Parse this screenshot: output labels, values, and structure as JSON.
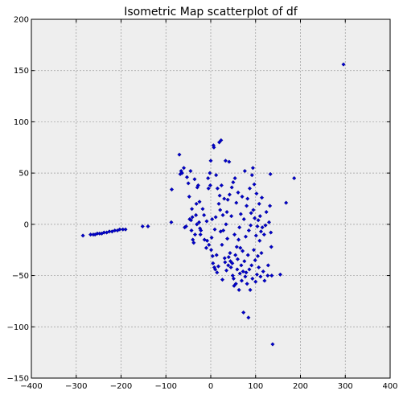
{
  "chart_data": {
    "type": "scatter",
    "title": "Isometric Map scatterplot of df",
    "xlabel": "",
    "ylabel": "",
    "xlim": [
      -400,
      400
    ],
    "ylim": [
      -150,
      200
    ],
    "xticks": [
      "−400",
      "−300",
      "−200",
      "−100",
      "0",
      "100",
      "200",
      "300",
      "400"
    ],
    "yticks": [
      "−150",
      "−100",
      "−50",
      "0",
      "50",
      "100",
      "150",
      "200"
    ],
    "grid": true,
    "colors": {
      "point": "#0000cc",
      "axes_background": "#eeeeee",
      "grid": "#9a9a9a"
    },
    "series": [
      {
        "points": [
          [
            -285,
            -11
          ],
          [
            -268,
            -10
          ],
          [
            -262,
            -10
          ],
          [
            -258,
            -10
          ],
          [
            -253,
            -9
          ],
          [
            -248,
            -9
          ],
          [
            -243,
            -9
          ],
          [
            -238,
            -8
          ],
          [
            -232,
            -8
          ],
          [
            -226,
            -7
          ],
          [
            -220,
            -7
          ],
          [
            -214,
            -6
          ],
          [
            -208,
            -6
          ],
          [
            -203,
            -5
          ],
          [
            -196,
            -5
          ],
          [
            -190,
            -5
          ],
          [
            -152,
            -2
          ],
          [
            -140,
            -2
          ],
          [
            296,
            156
          ],
          [
            -88,
            2
          ],
          [
            -87,
            34
          ],
          [
            -70,
            68
          ],
          [
            -68,
            49
          ],
          [
            -66,
            52
          ],
          [
            -64,
            50
          ],
          [
            -60,
            55
          ],
          [
            -58,
            -3
          ],
          [
            -55,
            -2
          ],
          [
            -53,
            46
          ],
          [
            -50,
            40
          ],
          [
            -48,
            27
          ],
          [
            -47,
            5
          ],
          [
            -45,
            52
          ],
          [
            -44,
            4
          ],
          [
            -43,
            -6
          ],
          [
            -42,
            15
          ],
          [
            -41,
            7
          ],
          [
            -40,
            -15
          ],
          [
            -38,
            -18
          ],
          [
            -36,
            44
          ],
          [
            -35,
            -10
          ],
          [
            -33,
            9
          ],
          [
            -32,
            20
          ],
          [
            -31,
            0
          ],
          [
            -30,
            36
          ],
          [
            -28,
            38
          ],
          [
            -26,
            2
          ],
          [
            -25,
            22
          ],
          [
            -24,
            -4
          ],
          [
            -23,
            -10
          ],
          [
            -22,
            -6
          ],
          [
            -18,
            15
          ],
          [
            -15,
            9
          ],
          [
            -14,
            -15
          ],
          [
            -10,
            -23
          ],
          [
            -9,
            3
          ],
          [
            -8,
            -16
          ],
          [
            -6,
            45
          ],
          [
            -5,
            35
          ],
          [
            -4,
            -20
          ],
          [
            -2,
            50
          ],
          [
            -1,
            38
          ],
          [
            0,
            62
          ],
          [
            1,
            -25
          ],
          [
            2,
            -13
          ],
          [
            3,
            5
          ],
          [
            4,
            -31
          ],
          [
            5,
            -38
          ],
          [
            6,
            77
          ],
          [
            7,
            75
          ],
          [
            8,
            -42
          ],
          [
            9,
            -5
          ],
          [
            10,
            -44
          ],
          [
            11,
            7
          ],
          [
            12,
            48
          ],
          [
            13,
            -30
          ],
          [
            14,
            -47
          ],
          [
            15,
            35
          ],
          [
            17,
            -41
          ],
          [
            18,
            20
          ],
          [
            19,
            80
          ],
          [
            20,
            28
          ],
          [
            21,
            14
          ],
          [
            22,
            -7
          ],
          [
            23,
            82
          ],
          [
            24,
            38
          ],
          [
            25,
            -20
          ],
          [
            26,
            -54
          ],
          [
            27,
            9
          ],
          [
            28,
            -6
          ],
          [
            30,
            25
          ],
          [
            31,
            -33
          ],
          [
            32,
            -37
          ],
          [
            33,
            62
          ],
          [
            34,
            0
          ],
          [
            35,
            -45
          ],
          [
            36,
            12
          ],
          [
            37,
            -14
          ],
          [
            38,
            24
          ],
          [
            39,
            -40
          ],
          [
            40,
            -32
          ],
          [
            41,
            61
          ],
          [
            42,
            29
          ],
          [
            43,
            -28
          ],
          [
            44,
            -36
          ],
          [
            45,
            -42
          ],
          [
            46,
            8
          ],
          [
            47,
            36
          ],
          [
            48,
            -38
          ],
          [
            49,
            -50
          ],
          [
            50,
            41
          ],
          [
            51,
            -53
          ],
          [
            52,
            -60
          ],
          [
            53,
            -10
          ],
          [
            54,
            45
          ],
          [
            55,
            -30
          ],
          [
            56,
            -58
          ],
          [
            57,
            21
          ],
          [
            58,
            -22
          ],
          [
            59,
            -44
          ],
          [
            60,
            -34
          ],
          [
            61,
            31
          ],
          [
            62,
            -15
          ],
          [
            63,
            -64
          ],
          [
            64,
            -3
          ],
          [
            65,
            -48
          ],
          [
            66,
            -23
          ],
          [
            67,
            10
          ],
          [
            68,
            -40
          ],
          [
            69,
            -55
          ],
          [
            70,
            27
          ],
          [
            71,
            -26
          ],
          [
            72,
            -46
          ],
          [
            73,
            -86
          ],
          [
            74,
            5
          ],
          [
            75,
            -36
          ],
          [
            76,
            52
          ],
          [
            77,
            -51
          ],
          [
            78,
            -12
          ],
          [
            79,
            -47
          ],
          [
            80,
            18
          ],
          [
            81,
            -58
          ],
          [
            82,
            25
          ],
          [
            83,
            -30
          ],
          [
            84,
            -91
          ],
          [
            85,
            -6
          ],
          [
            86,
            -44
          ],
          [
            87,
            35
          ],
          [
            88,
            -64
          ],
          [
            89,
            -1
          ],
          [
            90,
            11
          ],
          [
            91,
            -40
          ],
          [
            92,
            48
          ],
          [
            93,
            -53
          ],
          [
            94,
            55
          ],
          [
            95,
            14
          ],
          [
            96,
            -25
          ],
          [
            97,
            39
          ],
          [
            98,
            6
          ],
          [
            99,
            -35
          ],
          [
            100,
            -56
          ],
          [
            101,
            -11
          ],
          [
            102,
            30
          ],
          [
            103,
            -49
          ],
          [
            104,
            -2
          ],
          [
            105,
            -31
          ],
          [
            106,
            4
          ],
          [
            107,
            -42
          ],
          [
            108,
            20
          ],
          [
            109,
            -16
          ],
          [
            110,
            8
          ],
          [
            111,
            -51
          ],
          [
            112,
            -7
          ],
          [
            113,
            -28
          ],
          [
            114,
            26
          ],
          [
            115,
            -3
          ],
          [
            117,
            -46
          ],
          [
            119,
            -10
          ],
          [
            120,
            -55
          ],
          [
            122,
            -1
          ],
          [
            124,
            12
          ],
          [
            127,
            -50
          ],
          [
            128,
            -40
          ],
          [
            130,
            2
          ],
          [
            132,
            18
          ],
          [
            133,
            49
          ],
          [
            134,
            -8
          ],
          [
            135,
            -22
          ],
          [
            136,
            -50
          ],
          [
            138,
            -117
          ],
          [
            155,
            -49
          ],
          [
            168,
            21
          ],
          [
            186,
            45
          ]
        ]
      }
    ]
  }
}
